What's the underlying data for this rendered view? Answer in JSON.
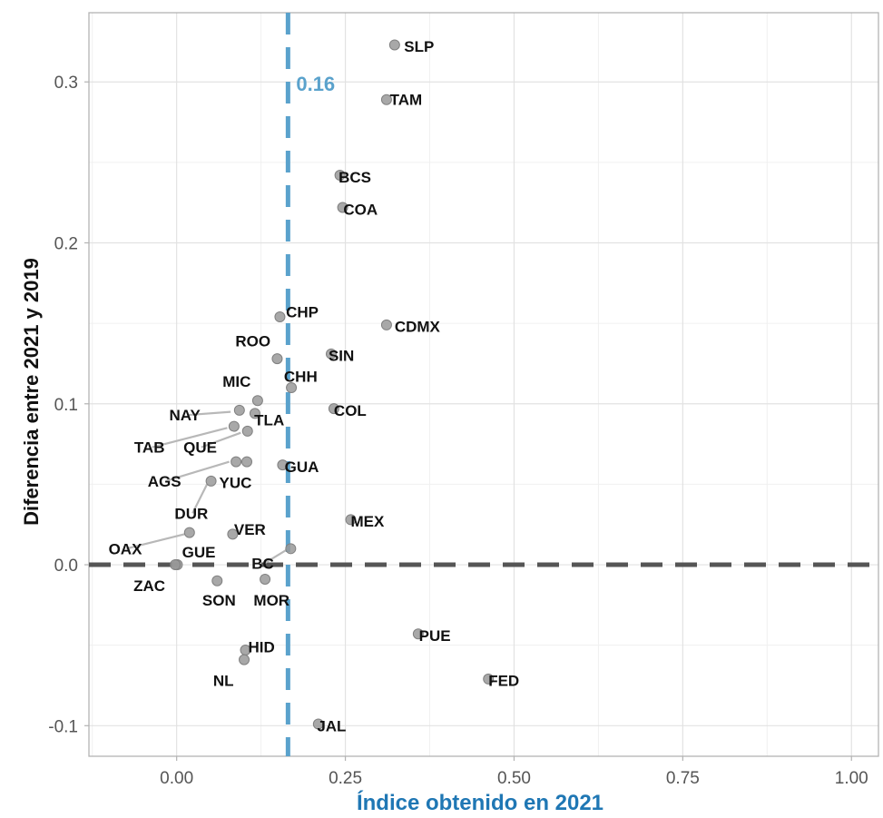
{
  "chart_data": {
    "type": "scatter",
    "xlabel": "Índice obtenido en 2021",
    "ylabel": "Diferencia entre 2021 y 2019",
    "xlim": [
      -0.13,
      1.04
    ],
    "ylim": [
      -0.119,
      0.343
    ],
    "x_ticks": [
      0.0,
      0.25,
      0.5,
      0.75,
      1.0
    ],
    "x_tick_labels": [
      "0.00",
      "0.25",
      "0.50",
      "0.75",
      "1.00"
    ],
    "y_ticks": [
      -0.1,
      0.0,
      0.1,
      0.2,
      0.3
    ],
    "y_tick_labels": [
      "-0.1",
      "0.0",
      "0.1",
      "0.2",
      "0.3"
    ],
    "grid": true,
    "reference_lines": {
      "vertical": {
        "x": 0.165,
        "label": "0.16",
        "color": "#5aa2cc",
        "style": "dashed"
      },
      "horizontal": {
        "y": 0.0,
        "color": "#555555",
        "style": "dashed"
      }
    },
    "point_color": "#999999",
    "xlabel_color": "#1f77b4",
    "points": [
      {
        "label": "SLP",
        "x": 0.323,
        "y": 0.323
      },
      {
        "label": "TAM",
        "x": 0.311,
        "y": 0.289
      },
      {
        "label": "BCS",
        "x": 0.242,
        "y": 0.242
      },
      {
        "label": "COA",
        "x": 0.246,
        "y": 0.222
      },
      {
        "label": "CDMX",
        "x": 0.311,
        "y": 0.149
      },
      {
        "label": "CHP",
        "x": 0.153,
        "y": 0.154
      },
      {
        "label": "SIN",
        "x": 0.229,
        "y": 0.131
      },
      {
        "label": "ROO",
        "x": 0.149,
        "y": 0.128
      },
      {
        "label": "CHH",
        "x": 0.17,
        "y": 0.11
      },
      {
        "label": "MIC",
        "x": 0.12,
        "y": 0.102
      },
      {
        "label": "COL",
        "x": 0.233,
        "y": 0.097
      },
      {
        "label": "NAY",
        "x": 0.093,
        "y": 0.096
      },
      {
        "label": "TLA",
        "x": 0.116,
        "y": 0.094
      },
      {
        "label": "TAB",
        "x": 0.085,
        "y": 0.086
      },
      {
        "label": "QUE",
        "x": 0.105,
        "y": 0.083
      },
      {
        "label": "AGS",
        "x": 0.088,
        "y": 0.064
      },
      {
        "label": "YUC",
        "x": 0.104,
        "y": 0.064
      },
      {
        "label": "GUA",
        "x": 0.157,
        "y": 0.062
      },
      {
        "label": "DUR",
        "x": 0.051,
        "y": 0.052
      },
      {
        "label": "MEX",
        "x": 0.258,
        "y": 0.028
      },
      {
        "label": "VER",
        "x": 0.083,
        "y": 0.019
      },
      {
        "label": "OAX",
        "x": 0.019,
        "y": 0.02
      },
      {
        "label": "BC",
        "x": 0.169,
        "y": 0.01
      },
      {
        "label": "GUE",
        "x": 0.001,
        "y": 0.0
      },
      {
        "label": "ZAC",
        "x": -0.002,
        "y": 0.0
      },
      {
        "label": "SON",
        "x": 0.06,
        "y": -0.01
      },
      {
        "label": "MOR",
        "x": 0.131,
        "y": -0.009
      },
      {
        "label": "PUE",
        "x": 0.358,
        "y": -0.043
      },
      {
        "label": "HID",
        "x": 0.102,
        "y": -0.053
      },
      {
        "label": "NL",
        "x": 0.1,
        "y": -0.059
      },
      {
        "label": "FED",
        "x": 0.462,
        "y": -0.071
      },
      {
        "label": "JAL",
        "x": 0.21,
        "y": -0.099
      }
    ],
    "label_positions": {
      "SLP": [
        0.337,
        0.322
      ],
      "TAM": [
        0.316,
        0.289
      ],
      "BCS": [
        0.24,
        0.241
      ],
      "COA": [
        0.247,
        0.221
      ],
      "CDMX": [
        0.323,
        0.148
      ],
      "CHP": [
        0.162,
        0.157
      ],
      "SIN": [
        0.225,
        0.13
      ],
      "ROO": [
        0.087,
        0.139
      ],
      "CHH": [
        0.159,
        0.117
      ],
      "MIC": [
        0.068,
        0.114
      ],
      "COL": [
        0.233,
        0.096
      ],
      "NAY": [
        -0.011,
        0.093
      ],
      "TLA": [
        0.115,
        0.09
      ],
      "TAB": [
        -0.063,
        0.073
      ],
      "QUE": [
        0.01,
        0.073
      ],
      "AGS": [
        -0.043,
        0.052
      ],
      "YUC": [
        0.063,
        0.051
      ],
      "GUA": [
        0.16,
        0.061
      ],
      "DUR": [
        -0.003,
        0.032
      ],
      "MEX": [
        0.258,
        0.027
      ],
      "VER": [
        0.085,
        0.022
      ],
      "OAX": [
        -0.101,
        0.01
      ],
      "BC": [
        0.111,
        0.001
      ],
      "GUE": [
        0.008,
        0.008
      ],
      "ZAC": [
        -0.064,
        -0.013
      ],
      "SON": [
        0.038,
        -0.022
      ],
      "MOR": [
        0.114,
        -0.022
      ],
      "PUE": [
        0.359,
        -0.044
      ],
      "HID": [
        0.106,
        -0.051
      ],
      "NL": [
        0.054,
        -0.072
      ],
      "FED": [
        0.462,
        -0.072
      ],
      "JAL": [
        0.208,
        -0.1
      ]
    },
    "leader_lines": [
      {
        "from": "NAY",
        "to": [
          0.08,
          0.095
        ]
      },
      {
        "from": "TAB",
        "to": [
          0.075,
          0.085
        ]
      },
      {
        "from": "QUE",
        "to": [
          0.095,
          0.082
        ]
      },
      {
        "from": "AGS",
        "to": [
          0.078,
          0.064
        ]
      },
      {
        "from": "DUR",
        "to": [
          0.045,
          0.05
        ]
      },
      {
        "from": "OAX",
        "to": [
          0.012,
          0.019
        ]
      },
      {
        "from": "BC",
        "to": [
          0.162,
          0.009
        ]
      }
    ]
  }
}
